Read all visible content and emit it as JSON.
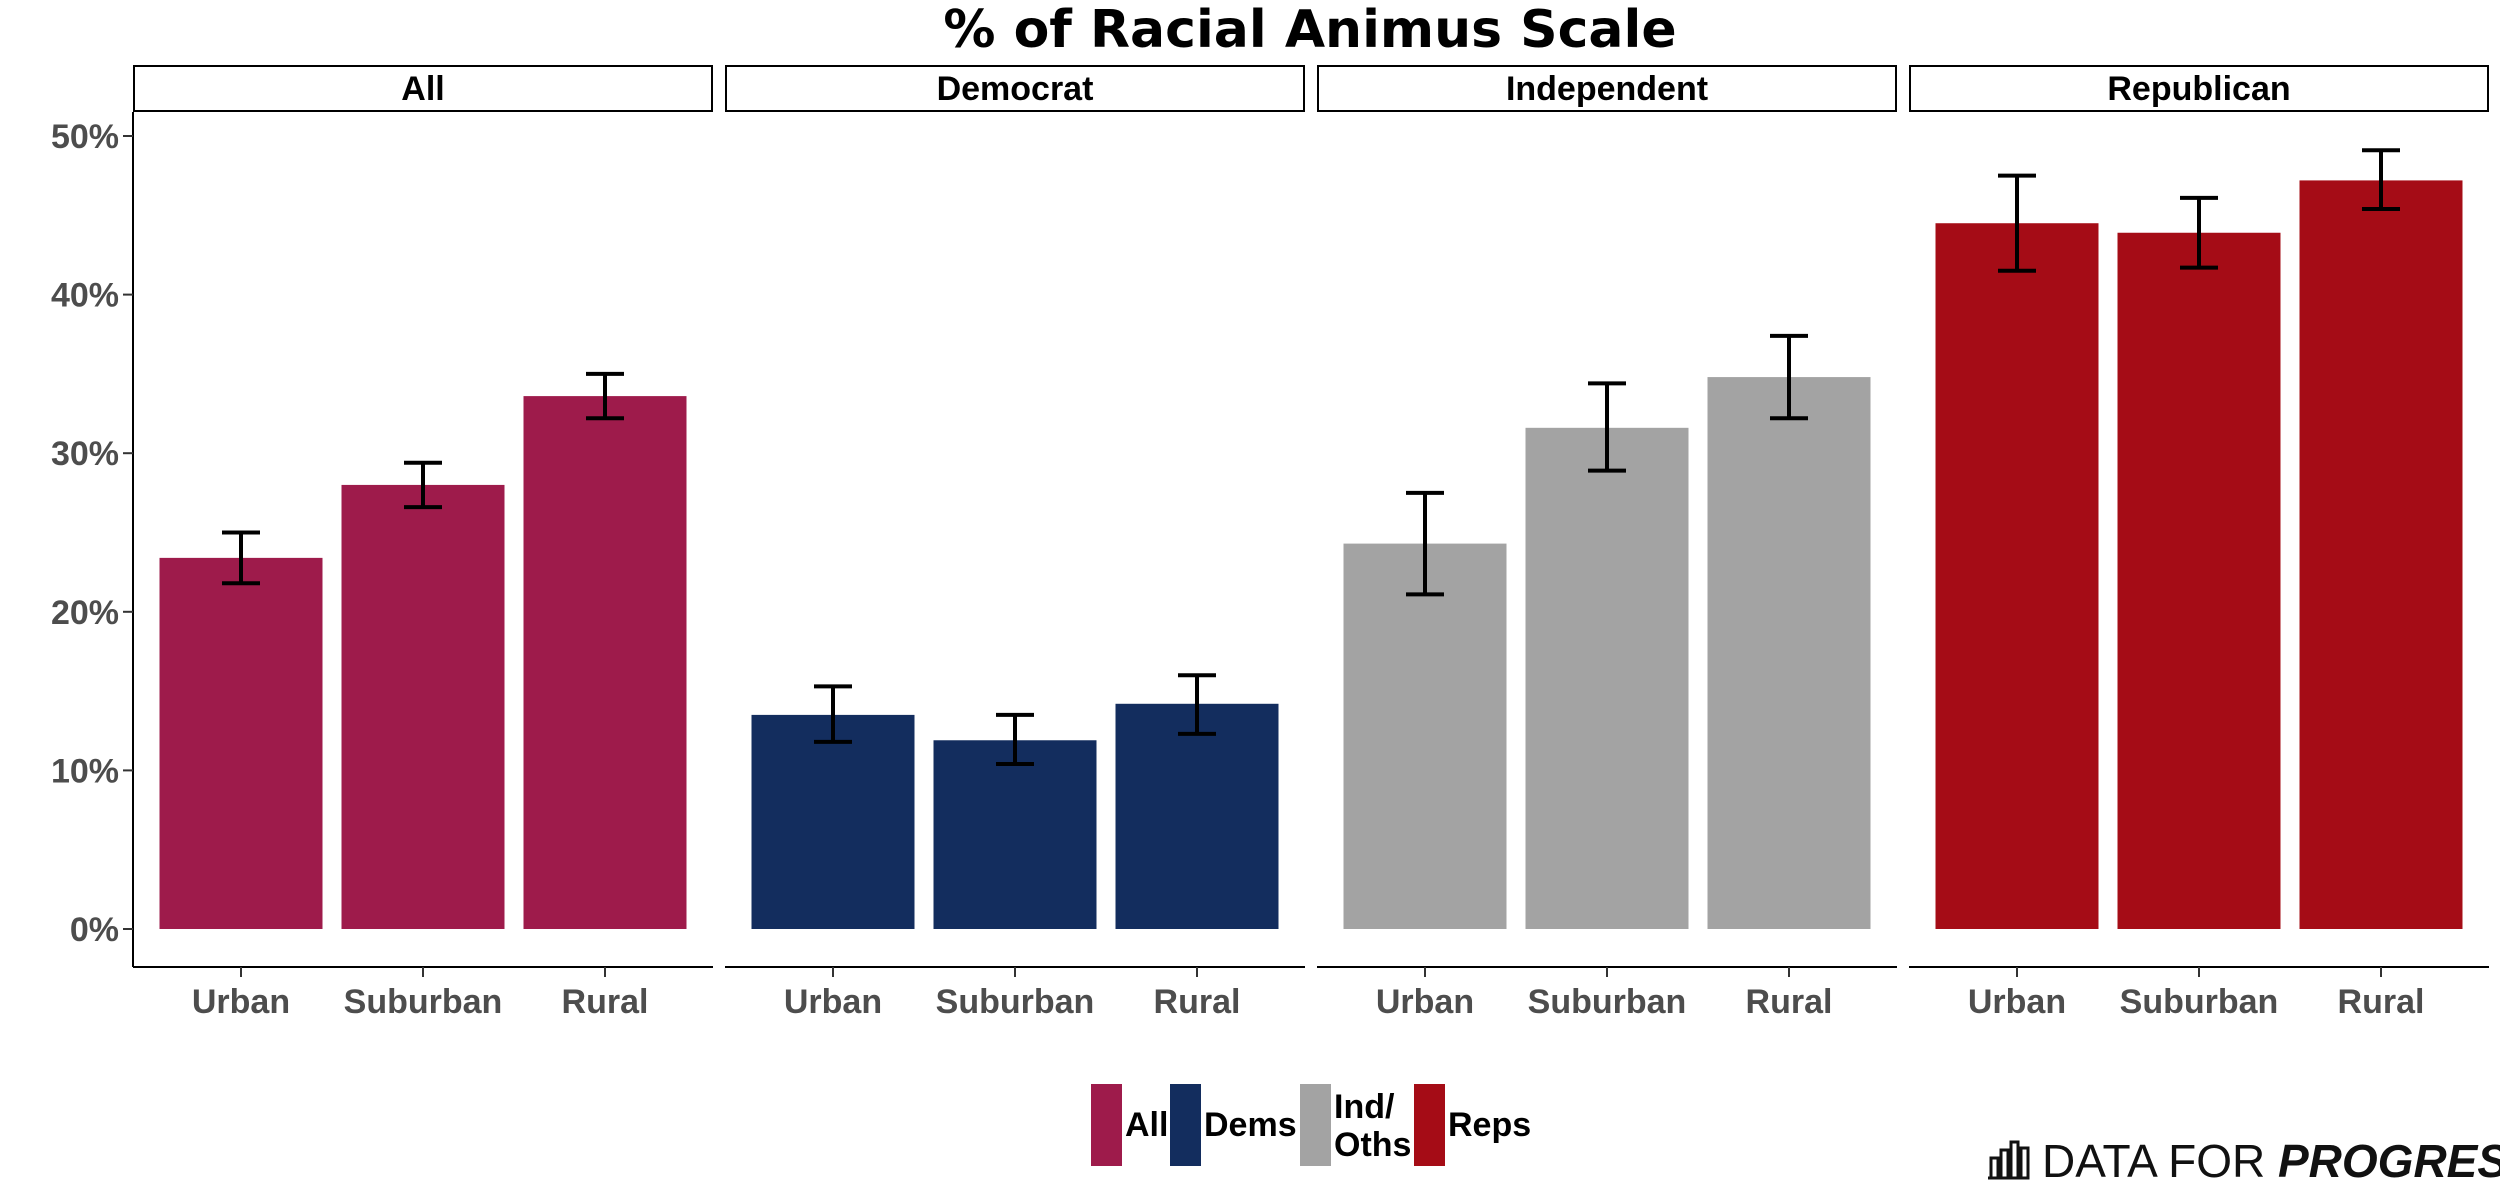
{
  "chart_data": {
    "type": "bar",
    "title": "% of Racial Animus Scale",
    "xlabel": "",
    "ylabel": "",
    "ylim": [
      0,
      0.525
    ],
    "y_ticks": [
      0,
      0.1,
      0.2,
      0.3,
      0.4,
      0.5
    ],
    "y_tick_labels": [
      "0%",
      "10%",
      "20%",
      "30%",
      "40%",
      "50%"
    ],
    "categories": [
      "Urban",
      "Suburban",
      "Rural"
    ],
    "panels": [
      {
        "name": "All",
        "color": "#9e1b4b",
        "values": [
          0.234,
          0.28,
          0.336
        ],
        "errors": [
          [
            0.218,
            0.25
          ],
          [
            0.266,
            0.294
          ],
          [
            0.322,
            0.35
          ]
        ]
      },
      {
        "name": "Democrat",
        "color": "#132d5e",
        "values": [
          0.135,
          0.119,
          0.142
        ],
        "errors": [
          [
            0.118,
            0.153
          ],
          [
            0.104,
            0.135
          ],
          [
            0.123,
            0.16
          ]
        ]
      },
      {
        "name": "Independent",
        "color": "#a3a3a3",
        "values": [
          0.243,
          0.316,
          0.348
        ],
        "errors": [
          [
            0.211,
            0.275
          ],
          [
            0.289,
            0.344
          ],
          [
            0.322,
            0.374
          ]
        ]
      },
      {
        "name": "Republican",
        "color": "#a50c16",
        "values": [
          0.445,
          0.439,
          0.472
        ],
        "errors": [
          [
            0.415,
            0.475
          ],
          [
            0.417,
            0.461
          ],
          [
            0.454,
            0.491
          ]
        ]
      }
    ],
    "legend": {
      "position": "bottom",
      "entries": [
        {
          "label": "All",
          "color": "#9e1b4b"
        },
        {
          "label": "Dems",
          "color": "#132d5e"
        },
        {
          "label": "Ind/\nOths",
          "color": "#a3a3a3"
        },
        {
          "label": "Reps",
          "color": "#a50c16"
        }
      ]
    }
  },
  "brand": {
    "light": "DATA FOR ",
    "bold": "PROGRESS"
  }
}
